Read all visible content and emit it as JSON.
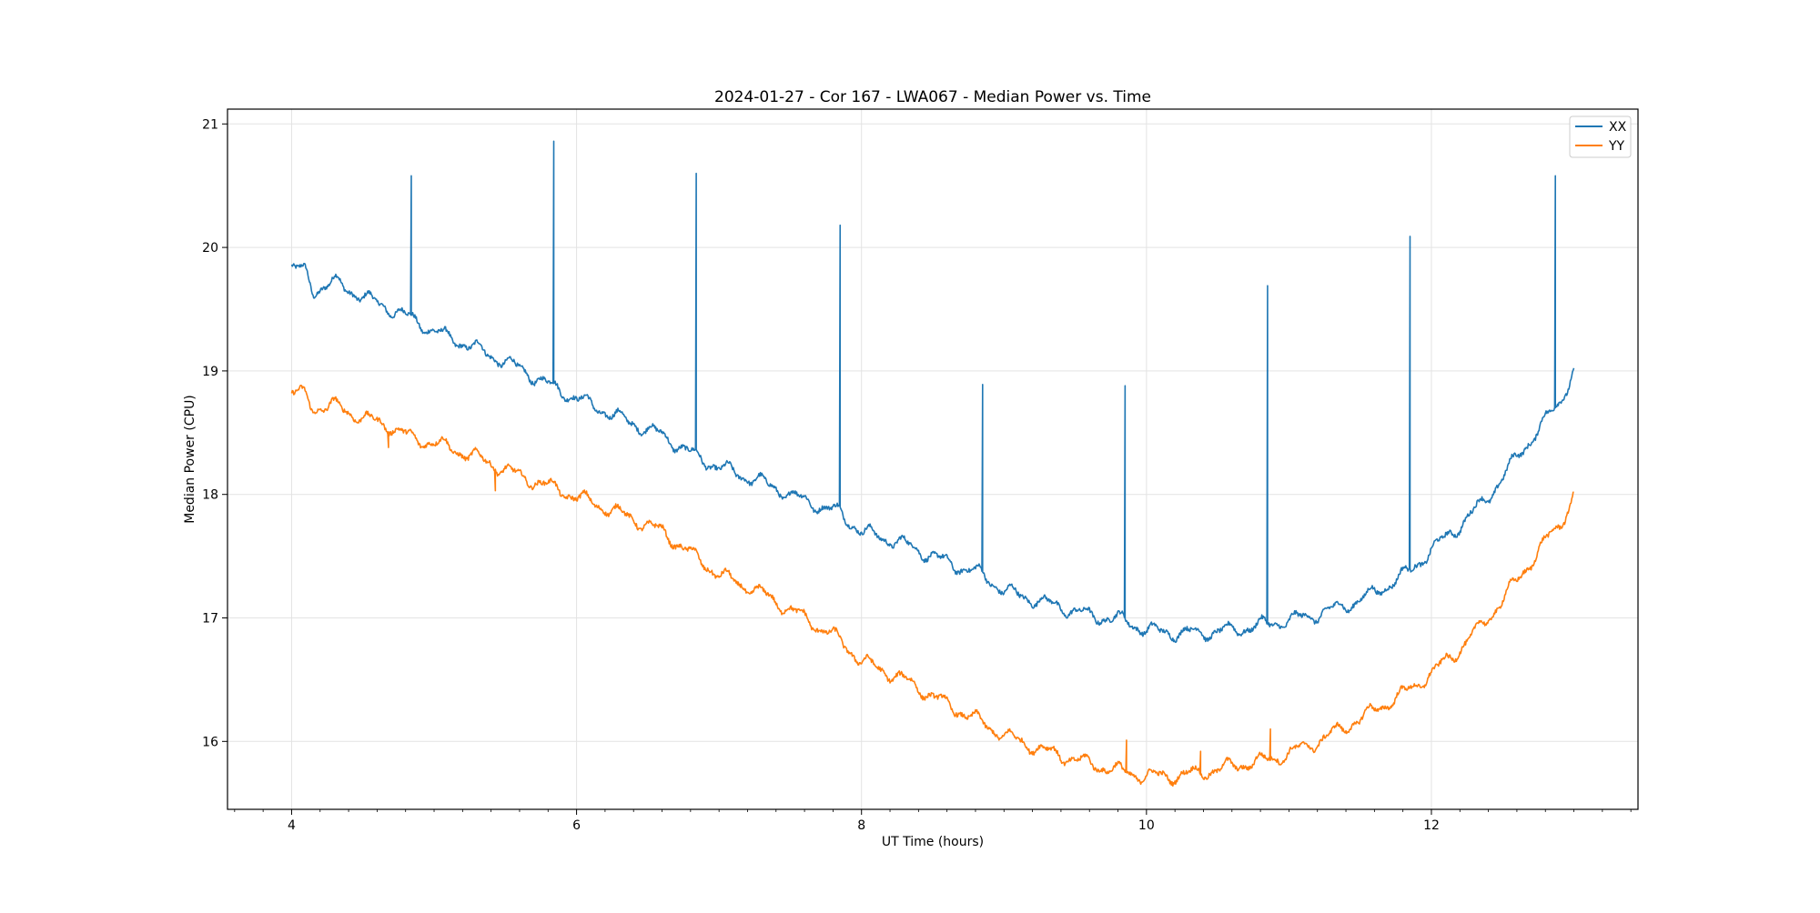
{
  "chart_data": {
    "type": "line",
    "title": "2024-01-27 - Cor 167 - LWA067 - Median Power vs. Time",
    "xlabel": "UT Time (hours)",
    "ylabel": "Median Power (CPU)",
    "xlim": [
      3.55,
      13.45
    ],
    "ylim": [
      15.45,
      21.12
    ],
    "xticks": [
      4,
      6,
      8,
      10,
      12
    ],
    "yticks": [
      16,
      17,
      18,
      19,
      20,
      21
    ],
    "x_minor_step": 0.2,
    "grid": true,
    "legend_position": "top-right",
    "series": [
      {
        "name": "XX",
        "color": "#1f77b4",
        "x": [
          4.0,
          4.1,
          4.15,
          4.3,
          4.5,
          4.7,
          4.85,
          5.0,
          5.3,
          5.6,
          5.85,
          6.0,
          6.3,
          6.6,
          6.85,
          7.0,
          7.3,
          7.6,
          7.85,
          8.0,
          8.3,
          8.6,
          8.85,
          9.0,
          9.3,
          9.6,
          9.85,
          10.0,
          10.2,
          10.4,
          10.6,
          10.85,
          11.0,
          11.2,
          11.4,
          11.6,
          11.85,
          12.0,
          12.2,
          12.4,
          12.6,
          12.8,
          12.9,
          13.0
        ],
        "values": [
          19.84,
          19.8,
          19.65,
          19.72,
          19.6,
          19.5,
          19.42,
          19.32,
          19.18,
          19.02,
          18.86,
          18.78,
          18.62,
          18.48,
          18.3,
          18.22,
          18.1,
          17.95,
          17.85,
          17.7,
          17.6,
          17.45,
          17.35,
          17.22,
          17.12,
          17.02,
          16.98,
          16.9,
          16.88,
          16.88,
          16.9,
          16.95,
          16.98,
          17.03,
          17.1,
          17.2,
          17.38,
          17.55,
          17.75,
          17.98,
          18.3,
          18.6,
          18.75,
          19.0
        ],
        "spikes": [
          {
            "x": 4.84,
            "value": 20.58
          },
          {
            "x": 5.84,
            "value": 20.86
          },
          {
            "x": 6.84,
            "value": 20.6
          },
          {
            "x": 7.85,
            "value": 20.18
          },
          {
            "x": 8.85,
            "value": 18.89
          },
          {
            "x": 9.85,
            "value": 18.88
          },
          {
            "x": 10.85,
            "value": 19.69
          },
          {
            "x": 11.85,
            "value": 20.09
          },
          {
            "x": 12.87,
            "value": 20.58
          }
        ]
      },
      {
        "name": "YY",
        "color": "#ff7f0e",
        "x": [
          4.0,
          4.1,
          4.15,
          4.3,
          4.5,
          4.7,
          4.85,
          5.0,
          5.3,
          5.6,
          5.85,
          6.0,
          6.3,
          6.6,
          6.85,
          7.0,
          7.3,
          7.6,
          7.85,
          8.0,
          8.3,
          8.6,
          8.85,
          9.0,
          9.3,
          9.6,
          9.85,
          10.0,
          10.2,
          10.4,
          10.6,
          10.85,
          11.0,
          11.2,
          11.4,
          11.6,
          11.85,
          12.0,
          12.2,
          12.4,
          12.6,
          12.8,
          12.9,
          13.0
        ],
        "values": [
          18.83,
          18.8,
          18.7,
          18.72,
          18.62,
          18.55,
          18.45,
          18.42,
          18.3,
          18.15,
          18.05,
          17.98,
          17.85,
          17.7,
          17.48,
          17.35,
          17.2,
          17.0,
          16.82,
          16.65,
          16.5,
          16.3,
          16.15,
          16.05,
          15.92,
          15.82,
          15.75,
          15.72,
          15.72,
          15.75,
          15.8,
          15.85,
          15.9,
          16.0,
          16.12,
          16.25,
          16.42,
          16.55,
          16.75,
          17.0,
          17.3,
          17.62,
          17.75,
          18.0
        ],
        "spikes": [
          {
            "x": 4.68,
            "value": 18.38
          },
          {
            "x": 5.43,
            "value": 18.03
          },
          {
            "x": 9.86,
            "value": 16.01
          },
          {
            "x": 10.38,
            "value": 15.92
          },
          {
            "x": 10.87,
            "value": 16.1
          }
        ]
      }
    ]
  }
}
